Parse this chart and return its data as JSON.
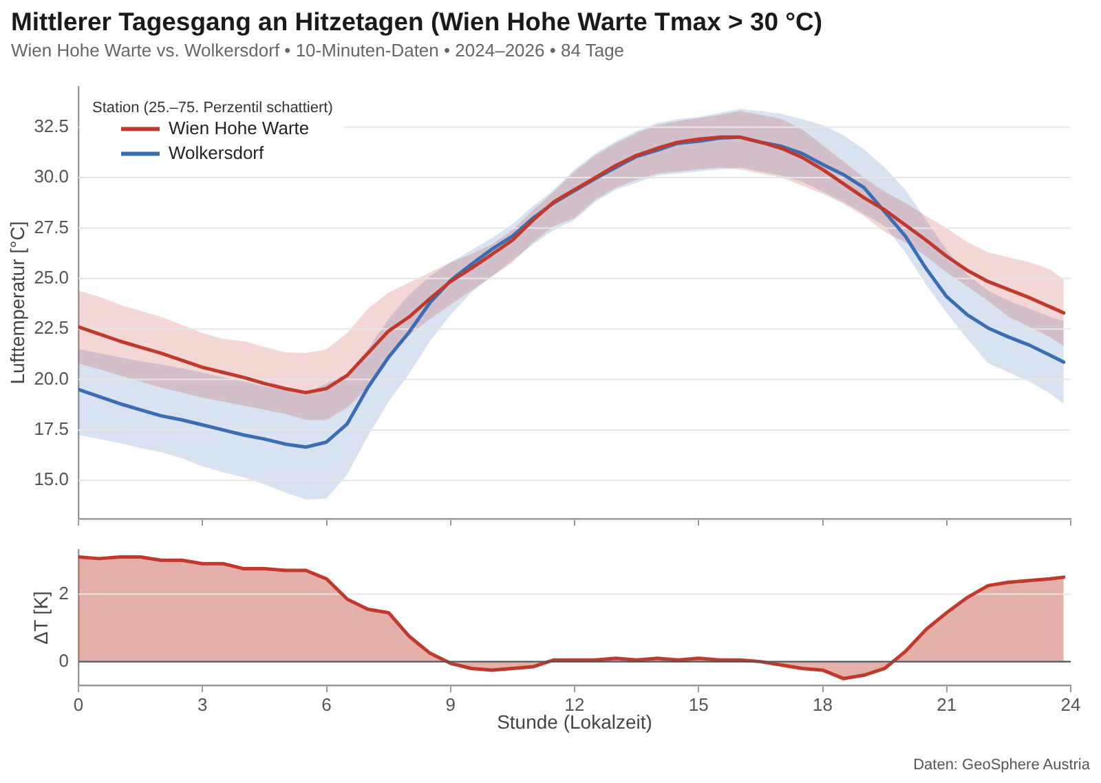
{
  "chart_data": [
    {
      "type": "line",
      "title": "Mittlerer Tagesgang an Hitzetagen (Wien Hohe Warte Tmax > 30 °C)",
      "subtitle": "Wien Hohe Warte vs. Wolkersdorf • 10-Minuten-Daten • 2024–2026 • 84 Tage",
      "ylabel": "Lufttemperatur [°C]",
      "x": [
        0,
        0.5,
        1,
        1.5,
        2,
        2.5,
        3,
        3.5,
        4,
        4.5,
        5,
        5.5,
        6,
        6.5,
        7,
        7.5,
        8,
        8.5,
        9,
        9.5,
        10,
        10.5,
        11,
        11.5,
        12,
        12.5,
        13,
        13.5,
        14,
        14.5,
        15,
        15.5,
        16,
        16.5,
        17,
        17.5,
        18,
        18.5,
        19,
        19.5,
        20,
        20.5,
        21,
        21.5,
        22,
        22.5,
        23,
        23.5,
        23.83
      ],
      "series": [
        {
          "name": "Wien Hohe Warte",
          "color": "#c0392b",
          "values": [
            22.6,
            22.25,
            21.9,
            21.6,
            21.3,
            20.95,
            20.6,
            20.35,
            20.1,
            19.8,
            19.55,
            19.35,
            19.55,
            20.2,
            21.3,
            22.4,
            23.1,
            24.0,
            24.85,
            25.5,
            26.2,
            26.9,
            27.9,
            28.8,
            29.4,
            30.0,
            30.6,
            31.1,
            31.45,
            31.75,
            31.9,
            32.0,
            32.0,
            31.75,
            31.45,
            31.0,
            30.4,
            29.7,
            29.0,
            28.4,
            27.65,
            26.9,
            26.1,
            25.4,
            24.85,
            24.45,
            24.05,
            23.6,
            23.3
          ],
          "lower": [
            20.8,
            20.5,
            20.2,
            19.9,
            19.6,
            19.35,
            19.1,
            18.9,
            18.7,
            18.5,
            18.3,
            18.0,
            18.0,
            18.6,
            19.6,
            21.0,
            22.2,
            23.0,
            23.7,
            24.4,
            25.1,
            25.8,
            26.8,
            27.6,
            28.0,
            28.9,
            29.5,
            29.9,
            30.2,
            30.3,
            30.4,
            30.5,
            30.4,
            30.2,
            30.0,
            29.6,
            29.2,
            28.7,
            28.1,
            27.3,
            26.8,
            26.1,
            25.3,
            24.6,
            23.9,
            23.1,
            22.6,
            22.1,
            21.65
          ],
          "upper": [
            24.4,
            24.1,
            23.7,
            23.4,
            23.1,
            22.7,
            22.3,
            22.0,
            21.9,
            21.6,
            21.35,
            21.3,
            21.5,
            22.3,
            23.5,
            24.3,
            24.8,
            25.3,
            25.8,
            26.2,
            26.7,
            27.4,
            28.4,
            29.3,
            30.3,
            31.1,
            31.7,
            32.2,
            32.6,
            32.8,
            32.95,
            33.1,
            33.3,
            33.1,
            32.9,
            32.4,
            31.6,
            30.8,
            30.0,
            29.3,
            28.75,
            28.1,
            27.5,
            26.8,
            26.3,
            26.05,
            25.8,
            25.45,
            24.95
          ]
        },
        {
          "name": "Wolkersdorf",
          "color": "#3a6db3",
          "values": [
            19.5,
            19.15,
            18.8,
            18.5,
            18.2,
            18.0,
            17.75,
            17.5,
            17.25,
            17.05,
            16.8,
            16.65,
            16.9,
            17.8,
            19.6,
            21.1,
            22.35,
            23.8,
            24.9,
            25.7,
            26.45,
            27.1,
            28.0,
            28.75,
            29.35,
            29.95,
            30.5,
            31.05,
            31.35,
            31.7,
            31.8,
            31.95,
            32.0,
            31.75,
            31.55,
            31.2,
            30.65,
            30.15,
            29.5,
            28.3,
            27.1,
            25.5,
            24.1,
            23.2,
            22.55,
            22.1,
            21.7,
            21.2,
            20.86
          ],
          "lower": [
            17.25,
            17.05,
            16.85,
            16.6,
            16.4,
            16.1,
            15.7,
            15.4,
            15.15,
            14.8,
            14.4,
            14.05,
            14.1,
            15.3,
            17.2,
            18.9,
            20.3,
            21.9,
            23.2,
            24.3,
            25.1,
            25.9,
            26.7,
            27.4,
            27.9,
            28.8,
            29.4,
            29.75,
            30.1,
            30.2,
            30.3,
            30.4,
            30.5,
            30.3,
            30.1,
            29.8,
            29.3,
            28.8,
            28.2,
            27.6,
            26.3,
            24.7,
            23.3,
            22.0,
            20.8,
            20.35,
            19.9,
            19.3,
            18.8
          ],
          "upper": [
            21.5,
            21.3,
            21.1,
            20.9,
            20.75,
            20.55,
            20.35,
            20.1,
            19.9,
            19.65,
            19.5,
            19.35,
            19.8,
            20.3,
            21.5,
            23.0,
            24.2,
            25.1,
            25.8,
            26.4,
            27.0,
            27.7,
            28.6,
            29.4,
            30.4,
            31.2,
            31.8,
            32.3,
            32.7,
            32.9,
            33.0,
            33.2,
            33.4,
            33.3,
            33.15,
            32.9,
            32.6,
            32.1,
            31.4,
            30.5,
            29.4,
            27.9,
            26.4,
            25.2,
            24.4,
            23.9,
            23.5,
            23.1,
            22.9
          ]
        }
      ],
      "xlim": [
        0,
        24
      ],
      "xticks": [
        0,
        3,
        6,
        9,
        12,
        15,
        18,
        21,
        24
      ],
      "ylim": [
        13.1,
        34.5
      ],
      "yticks": [
        {
          "value": 15,
          "label": "15.0"
        },
        17.5,
        {
          "value": 20,
          "label": "20.0"
        },
        22.5,
        {
          "value": 25,
          "label": "25.0"
        },
        27.5,
        {
          "value": 30,
          "label": "30.0"
        },
        32.5
      ],
      "grid": "y",
      "legend": "top left",
      "legend_title": "Station (25.–75. Perzentil schattiert)",
      "tick_labels": "y"
    },
    {
      "type": "area",
      "xlabel": "Stunde (Lokalzeit)",
      "ylabel": "ΔT [K]",
      "x": [
        0,
        0.5,
        1,
        1.5,
        2,
        2.5,
        3,
        3.5,
        4,
        4.5,
        5,
        5.5,
        6,
        6.5,
        7,
        7.5,
        8,
        8.5,
        9,
        9.5,
        10,
        10.5,
        11,
        11.5,
        12,
        12.5,
        13,
        13.5,
        14,
        14.5,
        15,
        15.5,
        16,
        16.5,
        17,
        17.5,
        18,
        18.5,
        19,
        19.5,
        20,
        20.5,
        21,
        21.5,
        22,
        22.5,
        23,
        23.5,
        23.83
      ],
      "series": [
        {
          "color": "#c0392b",
          "values": [
            3.1,
            3.05,
            3.1,
            3.1,
            3.0,
            3.0,
            2.9,
            2.9,
            2.75,
            2.75,
            2.7,
            2.7,
            2.45,
            1.85,
            1.55,
            1.45,
            0.75,
            0.25,
            -0.05,
            -0.2,
            -0.25,
            -0.2,
            -0.15,
            0.05,
            0.05,
            0.05,
            0.1,
            0.05,
            0.1,
            0.05,
            0.1,
            0.05,
            0.05,
            0,
            -0.1,
            -0.2,
            -0.25,
            -0.5,
            -0.4,
            -0.2,
            0.3,
            0.95,
            1.45,
            1.9,
            2.25,
            2.35,
            2.4,
            2.45,
            2.5
          ]
        }
      ],
      "xlim": [
        0,
        24
      ],
      "xticks": [
        0,
        3,
        6,
        9,
        12,
        15,
        18,
        21,
        24
      ],
      "ylim": [
        -0.7,
        3.3
      ],
      "yticks": [
        0,
        2
      ],
      "grid": "y",
      "ref_lines": [
        {
          "axis": "y",
          "value": 0,
          "color": "#555555"
        }
      ],
      "annotations": [
        "Daten: GeoSphere Austria"
      ]
    }
  ]
}
